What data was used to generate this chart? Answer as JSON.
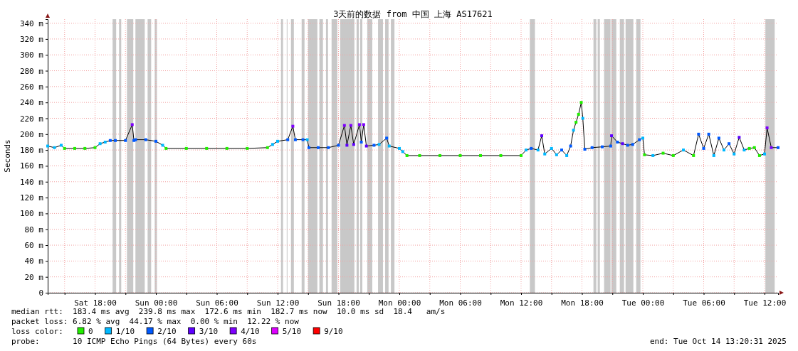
{
  "chart_data": {
    "type": "line",
    "title": "3天前的数据 from 中国 上海 AS17621",
    "ylabel": "Seconds",
    "legend_title": "loss color:",
    "legend": "bottom",
    "grid": true,
    "marker": "square",
    "xlim": [
      "2025-10-11T13:20",
      "2025-10-14T13:20"
    ],
    "xticks": [
      {
        "value": "2025-10-11T15:00",
        "label": null
      },
      {
        "value": "2025-10-11T18:00",
        "label": "Sat 18:00"
      },
      {
        "value": "2025-10-11T21:00",
        "label": null
      },
      {
        "value": "2025-10-12T00:00",
        "label": "Sun 00:00"
      },
      {
        "value": "2025-10-12T03:00",
        "label": null
      },
      {
        "value": "2025-10-12T06:00",
        "label": "Sun 06:00"
      },
      {
        "value": "2025-10-12T09:00",
        "label": null
      },
      {
        "value": "2025-10-12T12:00",
        "label": "Sun 12:00"
      },
      {
        "value": "2025-10-12T15:00",
        "label": null
      },
      {
        "value": "2025-10-12T18:00",
        "label": "Sun 18:00"
      },
      {
        "value": "2025-10-12T21:00",
        "label": null
      },
      {
        "value": "2025-10-13T00:00",
        "label": "Mon 00:00"
      },
      {
        "value": "2025-10-13T03:00",
        "label": null
      },
      {
        "value": "2025-10-13T06:00",
        "label": "Mon 06:00"
      },
      {
        "value": "2025-10-13T09:00",
        "label": null
      },
      {
        "value": "2025-10-13T12:00",
        "label": "Mon 12:00"
      },
      {
        "value": "2025-10-13T15:00",
        "label": null
      },
      {
        "value": "2025-10-13T18:00",
        "label": "Mon 18:00"
      },
      {
        "value": "2025-10-13T21:00",
        "label": null
      },
      {
        "value": "2025-10-14T00:00",
        "label": "Tue 00:00"
      },
      {
        "value": "2025-10-14T03:00",
        "label": null
      },
      {
        "value": "2025-10-14T06:00",
        "label": "Tue 06:00"
      },
      {
        "value": "2025-10-14T09:00",
        "label": null
      },
      {
        "value": "2025-10-14T12:00",
        "label": "Tue 12:00"
      }
    ],
    "ylim": [
      0,
      345
    ],
    "yticks": [
      0,
      {
        "value": 20,
        "label": "20 m"
      },
      {
        "value": 40,
        "label": "40 m"
      },
      {
        "value": 60,
        "label": "60 m"
      },
      {
        "value": 80,
        "label": "80 m"
      },
      {
        "value": 100,
        "label": "100 m"
      },
      {
        "value": 120,
        "label": "120 m"
      },
      {
        "value": 140,
        "label": "140 m"
      },
      {
        "value": 160,
        "label": "160 m"
      },
      {
        "value": 180,
        "label": "180 m"
      },
      {
        "value": 200,
        "label": "200 m"
      },
      {
        "value": 220,
        "label": "220 m"
      },
      {
        "value": 240,
        "label": "240 m"
      },
      {
        "value": 260,
        "label": "260 m"
      },
      {
        "value": 280,
        "label": "280 m"
      },
      {
        "value": 300,
        "label": "300 m"
      },
      {
        "value": 320,
        "label": "320 m"
      },
      {
        "value": 340,
        "label": "340 m"
      }
    ],
    "bands": [
      {
        "axis": "x",
        "from": "2025-10-11T19:44",
        "to": "2025-10-11T20:05",
        "color": "#c8c8c8"
      },
      {
        "axis": "x",
        "from": "2025-10-11T20:22",
        "to": "2025-10-11T20:35",
        "color": "#c8c8c8"
      },
      {
        "axis": "x",
        "from": "2025-10-11T21:09",
        "to": "2025-10-11T21:46",
        "color": "#c8c8c8"
      },
      {
        "axis": "x",
        "from": "2025-10-11T21:59",
        "to": "2025-10-11T22:54",
        "color": "#c8c8c8"
      },
      {
        "axis": "x",
        "from": "2025-10-11T23:11",
        "to": "2025-10-11T23:32",
        "color": "#c8c8c8"
      },
      {
        "axis": "x",
        "from": "2025-10-11T23:53",
        "to": "2025-10-12T00:06",
        "color": "#c8c8c8"
      },
      {
        "axis": "x",
        "from": "2025-10-12T12:20",
        "to": "2025-10-12T12:32",
        "color": "#c8c8c8"
      },
      {
        "axis": "x",
        "from": "2025-10-12T12:54",
        "to": "2025-10-12T12:58",
        "color": "#c8c8c8"
      },
      {
        "axis": "x",
        "from": "2025-10-12T13:19",
        "to": "2025-10-12T13:36",
        "color": "#c8c8c8"
      },
      {
        "axis": "x",
        "from": "2025-10-12T14:22",
        "to": "2025-10-12T14:39",
        "color": "#c8c8c8"
      },
      {
        "axis": "x",
        "from": "2025-10-12T15:00",
        "to": "2025-10-12T15:55",
        "color": "#c8c8c8"
      },
      {
        "axis": "x",
        "from": "2025-10-12T16:07",
        "to": "2025-10-12T16:28",
        "color": "#c8c8c8"
      },
      {
        "axis": "x",
        "from": "2025-10-12T16:46",
        "to": "2025-10-12T16:58",
        "color": "#c8c8c8"
      },
      {
        "axis": "x",
        "from": "2025-10-12T17:19",
        "to": "2025-10-12T17:53",
        "color": "#c8c8c8"
      },
      {
        "axis": "x",
        "from": "2025-10-12T18:10",
        "to": "2025-10-12T19:34",
        "color": "#c8c8c8"
      },
      {
        "axis": "x",
        "from": "2025-10-12T19:47",
        "to": "2025-10-12T20:00",
        "color": "#c8c8c8"
      },
      {
        "axis": "x",
        "from": "2025-10-12T20:08",
        "to": "2025-10-12T20:21",
        "color": "#c8c8c8"
      },
      {
        "axis": "x",
        "from": "2025-10-12T20:50",
        "to": "2025-10-12T21:20",
        "color": "#c8c8c8"
      },
      {
        "axis": "x",
        "from": "2025-10-12T21:54",
        "to": "2025-10-12T22:23",
        "color": "#c8c8c8"
      },
      {
        "axis": "x",
        "from": "2025-10-12T22:36",
        "to": "2025-10-12T22:56",
        "color": "#c8c8c8"
      },
      {
        "axis": "x",
        "from": "2025-10-12T23:10",
        "to": "2025-10-12T23:31",
        "color": "#c8c8c8"
      },
      {
        "axis": "x",
        "from": "2025-10-13T12:52",
        "to": "2025-10-13T13:22",
        "color": "#c8c8c8"
      },
      {
        "axis": "x",
        "from": "2025-10-13T19:08",
        "to": "2025-10-13T19:25",
        "color": "#c8c8c8"
      },
      {
        "axis": "x",
        "from": "2025-10-13T19:33",
        "to": "2025-10-13T19:46",
        "color": "#c8c8c8"
      },
      {
        "axis": "x",
        "from": "2025-10-13T20:11",
        "to": "2025-10-13T20:49",
        "color": "#c8c8c8"
      },
      {
        "axis": "x",
        "from": "2025-10-13T20:54",
        "to": "2025-10-13T21:23",
        "color": "#c8c8c8"
      },
      {
        "axis": "x",
        "from": "2025-10-13T21:44",
        "to": "2025-10-13T22:09",
        "color": "#c8c8c8"
      },
      {
        "axis": "x",
        "from": "2025-10-13T22:18",
        "to": "2025-10-13T23:04",
        "color": "#c8c8c8"
      },
      {
        "axis": "x",
        "from": "2025-10-13T23:21",
        "to": "2025-10-13T23:46",
        "color": "#c8c8c8"
      },
      {
        "axis": "x",
        "from": "2025-10-14T12:05",
        "to": "2025-10-14T13:00",
        "color": "#c8c8c8"
      }
    ],
    "series": [
      {
        "color": "#000000",
        "marker": "none",
        "x": [
          "2025-10-11T13:20",
          "2025-10-11T14:00",
          "2025-10-11T14:40",
          "2025-10-11T15:00",
          "2025-10-11T16:00",
          "2025-10-11T17:00",
          "2025-10-11T18:00",
          "2025-10-11T18:30",
          "2025-10-11T19:00",
          "2025-10-11T19:30",
          "2025-10-11T20:00",
          "2025-10-11T21:00",
          "2025-10-11T21:40",
          "2025-10-11T21:50",
          "2025-10-11T22:00",
          "2025-10-11T23:00",
          "2025-10-12T00:00",
          "2025-10-12T00:40",
          "2025-10-12T01:00",
          "2025-10-12T03:00",
          "2025-10-12T05:00",
          "2025-10-12T07:00",
          "2025-10-12T09:00",
          "2025-10-12T11:00",
          "2025-10-12T11:30",
          "2025-10-12T12:00",
          "2025-10-12T13:00",
          "2025-10-12T13:30",
          "2025-10-12T13:45",
          "2025-10-12T14:30",
          "2025-10-12T14:55",
          "2025-10-12T15:05",
          "2025-10-12T16:00",
          "2025-10-12T17:00",
          "2025-10-12T18:00",
          "2025-10-12T18:35",
          "2025-10-12T18:50",
          "2025-10-12T19:13",
          "2025-10-12T19:30",
          "2025-10-12T20:04",
          "2025-10-12T20:15",
          "2025-10-12T20:29",
          "2025-10-12T20:45",
          "2025-10-12T21:30",
          "2025-10-12T22:00",
          "2025-10-12T22:45",
          "2025-10-12T23:00",
          "2025-10-13T00:00",
          "2025-10-13T00:20",
          "2025-10-13T00:45",
          "2025-10-13T02:00",
          "2025-10-13T04:00",
          "2025-10-13T06:00",
          "2025-10-13T08:00",
          "2025-10-13T10:00",
          "2025-10-13T12:00",
          "2025-10-13T12:30",
          "2025-10-13T13:00",
          "2025-10-13T13:40",
          "2025-10-13T14:02",
          "2025-10-13T14:20",
          "2025-10-13T15:00",
          "2025-10-13T15:30",
          "2025-10-13T16:00",
          "2025-10-13T16:30",
          "2025-10-13T16:53",
          "2025-10-13T17:10",
          "2025-10-13T17:25",
          "2025-10-13T17:40",
          "2025-10-13T17:56",
          "2025-10-13T18:05",
          "2025-10-13T18:17",
          "2025-10-13T19:00",
          "2025-10-13T20:00",
          "2025-10-13T20:50",
          "2025-10-13T20:55",
          "2025-10-13T21:30",
          "2025-10-13T22:00",
          "2025-10-13T22:30",
          "2025-10-13T23:00",
          "2025-10-13T23:40",
          "2025-10-14T00:00",
          "2025-10-14T00:10",
          "2025-10-14T01:00",
          "2025-10-14T02:00",
          "2025-10-14T03:00",
          "2025-10-14T04:00",
          "2025-10-14T05:00",
          "2025-10-14T05:30",
          "2025-10-14T06:00",
          "2025-10-14T06:30",
          "2025-10-14T07:00",
          "2025-10-14T07:30",
          "2025-10-14T08:00",
          "2025-10-14T08:30",
          "2025-10-14T09:00",
          "2025-10-14T09:30",
          "2025-10-14T10:00",
          "2025-10-14T10:30",
          "2025-10-14T11:00",
          "2025-10-14T11:30",
          "2025-10-14T12:00",
          "2025-10-14T12:15",
          "2025-10-14T12:40",
          "2025-10-14T13:20"
        ],
        "values": [
          185,
          183,
          186,
          182,
          182,
          182,
          183,
          188,
          190,
          192,
          192,
          192,
          212,
          192,
          193,
          193,
          191,
          186,
          182,
          182,
          182,
          182,
          182,
          183,
          187,
          191,
          193,
          210,
          193,
          193,
          193,
          183,
          183,
          183,
          186,
          211,
          186,
          211,
          187,
          212,
          190,
          212,
          185,
          186,
          187,
          195,
          185,
          182,
          178,
          173,
          173,
          173,
          173,
          173,
          173,
          173,
          180,
          182,
          180,
          198,
          175,
          182,
          174,
          180,
          173,
          185,
          205,
          215,
          225,
          240,
          220,
          181,
          183,
          184,
          185,
          198,
          190,
          188,
          186,
          187,
          193,
          195,
          174,
          173,
          176,
          173,
          180,
          173,
          200,
          182,
          200,
          173,
          195,
          180,
          188,
          175,
          196,
          180,
          182,
          183,
          173,
          175,
          208,
          183,
          183
        ]
      },
      {
        "type": "scatter",
        "name": "0",
        "color": "#22ee00",
        "x": [
          "2025-10-11T15:00",
          "2025-10-11T16:00",
          "2025-10-11T17:00",
          "2025-10-11T18:00",
          "2025-10-12T01:00",
          "2025-10-12T03:00",
          "2025-10-12T05:00",
          "2025-10-12T07:00",
          "2025-10-12T09:00",
          "2025-10-12T11:00",
          "2025-10-13T00:45",
          "2025-10-13T02:00",
          "2025-10-13T04:00",
          "2025-10-13T06:00",
          "2025-10-13T08:00",
          "2025-10-13T10:00",
          "2025-10-13T12:00",
          "2025-10-13T17:25",
          "2025-10-13T17:40",
          "2025-10-13T17:56",
          "2025-10-14T00:10",
          "2025-10-14T02:00",
          "2025-10-14T03:00",
          "2025-10-14T05:00",
          "2025-10-14T10:30",
          "2025-10-14T11:00",
          "2025-10-14T11:30"
        ],
        "values": [
          182,
          182,
          182,
          183,
          182,
          182,
          182,
          182,
          182,
          183,
          173,
          173,
          173,
          173,
          173,
          173,
          173,
          215,
          225,
          240,
          174,
          176,
          173,
          173,
          182,
          183,
          173
        ]
      },
      {
        "type": "scatter",
        "name": "1/10",
        "color": "#00b8ff",
        "x": [
          "2025-10-11T13:20",
          "2025-10-11T14:00",
          "2025-10-11T14:40",
          "2025-10-11T18:30",
          "2025-10-11T19:00",
          "2025-10-12T00:40",
          "2025-10-12T11:30",
          "2025-10-12T12:00",
          "2025-10-12T14:55",
          "2025-10-12T22:00",
          "2025-10-12T23:00",
          "2025-10-13T00:00",
          "2025-10-13T00:20",
          "2025-10-13T12:30",
          "2025-10-13T13:40",
          "2025-10-13T14:20",
          "2025-10-13T15:00",
          "2025-10-13T15:30",
          "2025-10-13T16:30",
          "2025-10-13T17:10",
          "2025-10-13T18:05",
          "2025-10-14T00:00",
          "2025-10-14T01:00",
          "2025-10-14T04:00",
          "2025-10-14T07:00",
          "2025-10-14T08:00",
          "2025-10-14T09:00",
          "2025-10-14T10:00",
          "2025-10-14T12:00"
        ],
        "values": [
          185,
          183,
          186,
          188,
          190,
          186,
          187,
          191,
          193,
          187,
          185,
          182,
          178,
          180,
          180,
          175,
          182,
          174,
          173,
          205,
          220,
          195,
          173,
          180,
          173,
          180,
          175,
          180,
          175
        ]
      },
      {
        "type": "scatter",
        "name": "2/10",
        "color": "#0059ff",
        "x": [
          "2025-10-11T19:30",
          "2025-10-11T20:00",
          "2025-10-11T21:00",
          "2025-10-11T21:50",
          "2025-10-11T22:00",
          "2025-10-11T23:00",
          "2025-10-12T00:00",
          "2025-10-12T13:00",
          "2025-10-12T13:45",
          "2025-10-12T14:30",
          "2025-10-12T15:05",
          "2025-10-12T16:00",
          "2025-10-12T17:00",
          "2025-10-12T18:00",
          "2025-10-12T20:15",
          "2025-10-12T21:30",
          "2025-10-12T22:45",
          "2025-10-13T13:00",
          "2025-10-13T16:00",
          "2025-10-13T16:53",
          "2025-10-13T18:17",
          "2025-10-13T19:00",
          "2025-10-13T20:00",
          "2025-10-13T20:50",
          "2025-10-13T21:30",
          "2025-10-13T22:30",
          "2025-10-13T23:00",
          "2025-10-13T23:40",
          "2025-10-14T05:30",
          "2025-10-14T06:00",
          "2025-10-14T06:30",
          "2025-10-14T07:30",
          "2025-10-14T08:30",
          "2025-10-14T13:20"
        ],
        "values": [
          192,
          192,
          192,
          192,
          193,
          193,
          191,
          193,
          193,
          193,
          183,
          183,
          183,
          186,
          190,
          186,
          195,
          182,
          180,
          185,
          181,
          183,
          184,
          185,
          190,
          186,
          187,
          193,
          200,
          182,
          200,
          195,
          188,
          183
        ]
      },
      {
        "type": "scatter",
        "name": "3/10",
        "color": "#5e00ff",
        "x": [
          "2025-10-12T18:50",
          "2025-10-12T19:30",
          "2025-10-12T20:45",
          "2025-10-13T14:02",
          "2025-10-13T20:55",
          "2025-10-13T22:00",
          "2025-10-14T09:30"
        ],
        "values": [
          186,
          187,
          185,
          198,
          198,
          188,
          196
        ]
      },
      {
        "type": "scatter",
        "name": "4/10",
        "color": "#7e00ff",
        "x": [
          "2025-10-11T21:40",
          "2025-10-12T13:30",
          "2025-10-12T18:35",
          "2025-10-12T19:13",
          "2025-10-12T20:04",
          "2025-10-12T20:29",
          "2025-10-14T12:15",
          "2025-10-14T12:40"
        ],
        "values": [
          212,
          210,
          211,
          211,
          212,
          212,
          208,
          183
        ]
      },
      {
        "type": "scatter",
        "name": "5/10",
        "color": "#dd00ff"
      },
      {
        "type": "scatter",
        "name": "9/10",
        "color": "#ff0000"
      }
    ],
    "annotations": [
      "median rtt:  183.4 ms avg  239.8 ms max  172.6 ms min  182.7 ms now  10.0 ms sd  18.4   am/s",
      "packet loss: 6.82 % avg  44.17 % max  0.00 % min  12.22 % now",
      "probe:       10 ICMP Echo Pings (64 Bytes) every 60s",
      "end: Tue Oct 14 13:20:31 2025"
    ]
  }
}
